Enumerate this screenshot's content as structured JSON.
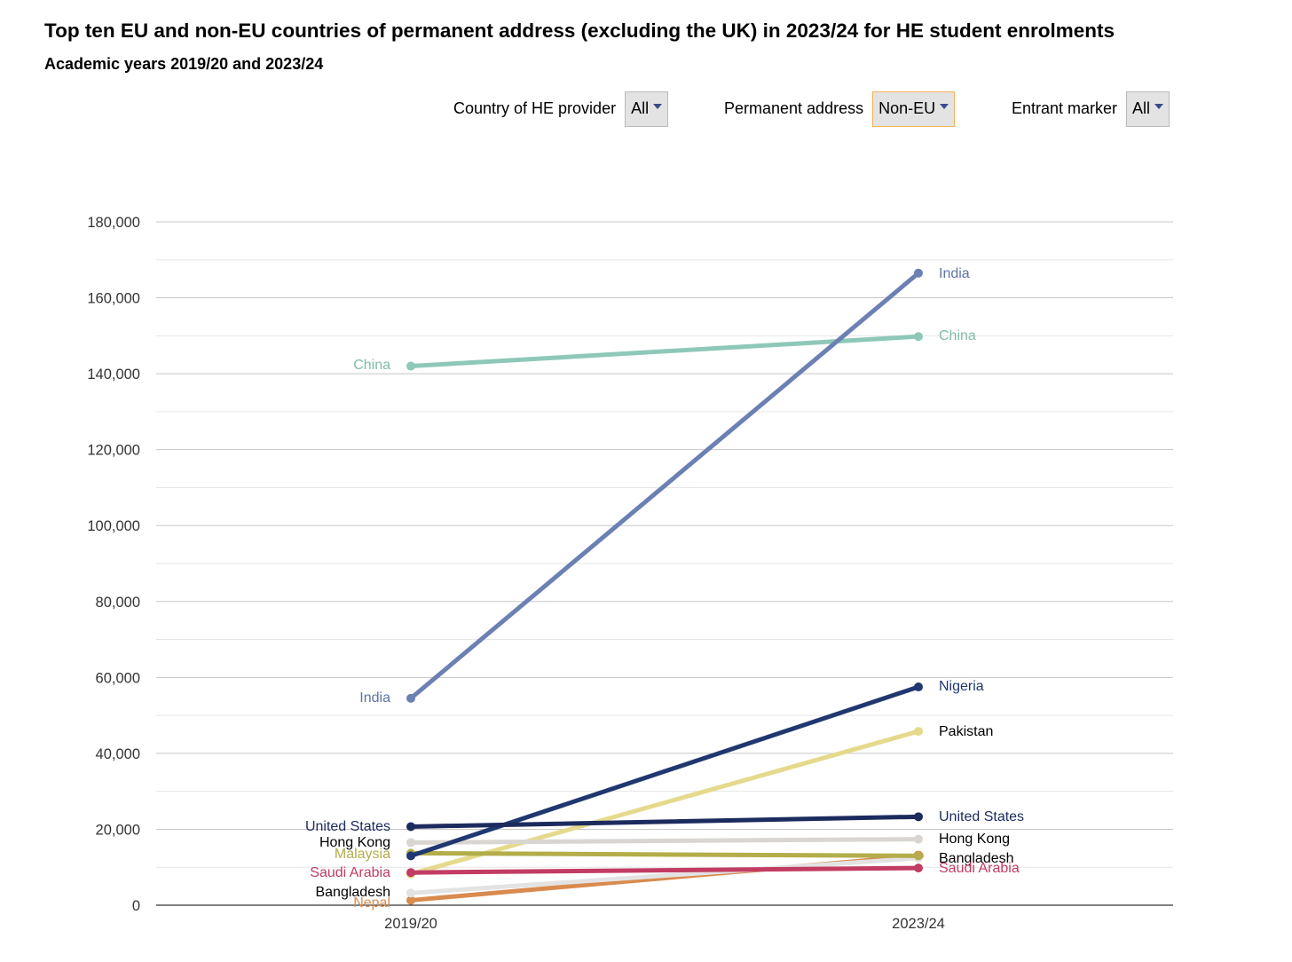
{
  "title": "Top ten EU and non-EU countries of permanent address (excluding the UK) in 2023/24 for HE student enrolments",
  "subtitle": "Academic years 2019/20 and 2023/24",
  "filters": [
    {
      "label": "Country of HE provider",
      "value": "All"
    },
    {
      "label": "Permanent address",
      "value": "Non-EU"
    },
    {
      "label": "Entrant marker",
      "value": "All"
    }
  ],
  "chart_data": {
    "type": "line",
    "categories": [
      "2019/20",
      "2023/24"
    ],
    "ylim": [
      0,
      180000
    ],
    "yticks": [
      0,
      20000,
      40000,
      60000,
      80000,
      100000,
      120000,
      140000,
      160000,
      180000
    ],
    "ytick_labels": [
      "0",
      "20,000",
      "40,000",
      "60,000",
      "80,000",
      "100,000",
      "120,000",
      "140,000",
      "160,000",
      "180,000"
    ],
    "grid": true,
    "series": [
      {
        "name": "India",
        "values": [
          54500,
          166500
        ],
        "color": "#6b80b3",
        "text_color": "#5f73a6",
        "label_left": "India",
        "label_right": "India"
      },
      {
        "name": "China",
        "values": [
          142000,
          149800
        ],
        "color": "#8ec8b8",
        "text_color": "#7fbcaa",
        "label_left": "China",
        "label_right": "China"
      },
      {
        "name": "Nigeria",
        "values": [
          13000,
          57500
        ],
        "color": "#203870",
        "text_color": "#203870",
        "label_left": "",
        "label_right": "Nigeria"
      },
      {
        "name": "Pakistan",
        "values": [
          8200,
          45800
        ],
        "color": "#e5da8c",
        "text_color": "#000000",
        "label_left": "",
        "label_right": "Pakistan"
      },
      {
        "name": "United States",
        "values": [
          20700,
          23300
        ],
        "color": "#1c2b5e",
        "text_color": "#1c2b5e",
        "label_left": "United States",
        "label_right": "United States"
      },
      {
        "name": "Hong Kong",
        "values": [
          16500,
          17400
        ],
        "color": "#d9d6d2",
        "text_color": "#000000",
        "label_left": "Hong Kong",
        "label_right": "Hong Kong"
      },
      {
        "name": "Malaysia",
        "values": [
          13700,
          13000
        ],
        "color": "#b3ad4a",
        "text_color": "#b3ad4a",
        "label_left": "Malaysia",
        "label_right": ""
      },
      {
        "name": "Bangladesh",
        "values": [
          3200,
          12400
        ],
        "color": "#e3e3e3",
        "text_color": "#000000",
        "label_left": "Bangladesh",
        "label_right": "Bangladesh"
      },
      {
        "name": "Nepal",
        "values": [
          1300,
          13000
        ],
        "color": "#d98a4e",
        "text_color": "#d98a4e",
        "label_left": "Nepal",
        "label_right": ""
      },
      {
        "name": "Saudi Arabia",
        "values": [
          8600,
          9800
        ],
        "color": "#c23c63",
        "text_color": "#c23c63",
        "label_left": "Saudi Arabia",
        "label_right": "Saudi Arabia"
      }
    ]
  }
}
